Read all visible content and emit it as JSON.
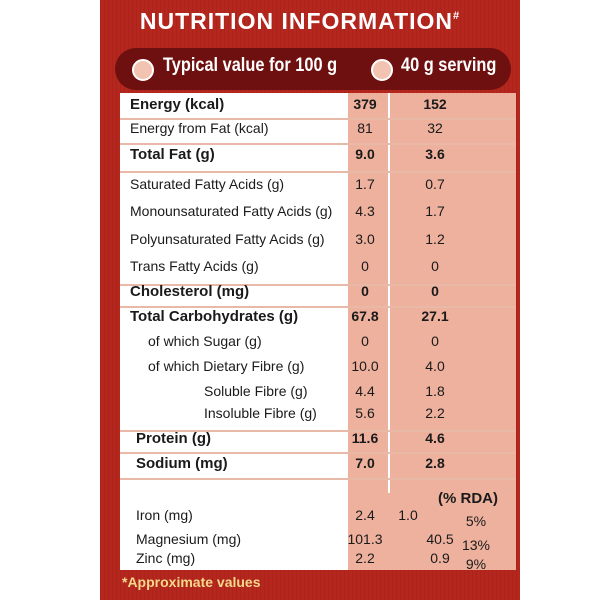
{
  "title": "NUTRITION INFORMATION",
  "title_mark": "#",
  "header": {
    "per100": "Typical value for 100 g",
    "serving": "40 g serving"
  },
  "rda_label": "(% RDA)",
  "rows": [
    {
      "name": "Energy (kcal)",
      "v100": "379",
      "vsrv": "152"
    },
    {
      "name": "Energy from Fat (kcal)",
      "v100": "81",
      "vsrv": "32"
    },
    {
      "name": "Total Fat (g)",
      "v100": "9.0",
      "vsrv": "3.6"
    },
    {
      "name": "Saturated Fatty Acids (g)",
      "v100": "1.7",
      "vsrv": "0.7"
    },
    {
      "name": "Monounsaturated Fatty Acids (g)",
      "v100": "4.3",
      "vsrv": "1.7"
    },
    {
      "name": "Polyunsaturated Fatty Acids (g)",
      "v100": "3.0",
      "vsrv": "1.2"
    },
    {
      "name": "Trans Fatty Acids (g)",
      "v100": "0",
      "vsrv": "0"
    },
    {
      "name": "Cholesterol (mg)",
      "v100": "0",
      "vsrv": "0"
    },
    {
      "name": "Total Carbohydrates (g)",
      "v100": "67.8",
      "vsrv": "27.1"
    },
    {
      "name": "of which Sugar (g)",
      "v100": "0",
      "vsrv": "0"
    },
    {
      "name": "of which Dietary Fibre (g)",
      "v100": "10.0",
      "vsrv": "4.0"
    },
    {
      "name": "Soluble Fibre (g)",
      "v100": "4.4",
      "vsrv": "1.8"
    },
    {
      "name": "Insoluble Fibre (g)",
      "v100": "5.6",
      "vsrv": "2.2"
    },
    {
      "name": "Protein (g)",
      "v100": "11.6",
      "vsrv": "4.6"
    },
    {
      "name": "Sodium (mg)",
      "v100": "7.0",
      "vsrv": "2.8"
    },
    {
      "name": "Iron (mg)",
      "v100": "2.4",
      "vsrv": "1.0",
      "rda": "5%"
    },
    {
      "name": "Magnesium (mg)",
      "v100": "101.3",
      "vsrv": "40.5",
      "rda": "13%"
    },
    {
      "name": "Zinc (mg)",
      "v100": "2.2",
      "vsrv": "0.9",
      "rda": "9%"
    }
  ],
  "footnote": "*Approximate values",
  "colors": {
    "pack": "#b5261e",
    "pill": "#6e1010",
    "serving_column": "#eeb19e",
    "footnote": "#f5d88a"
  }
}
